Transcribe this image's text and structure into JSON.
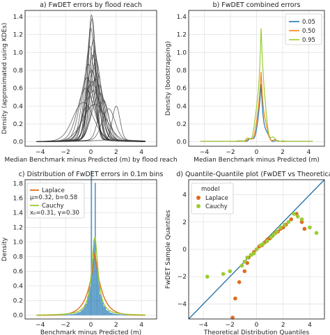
{
  "chart_data": [
    {
      "panel": "a",
      "type": "line",
      "title": "a) FwDET errors by flood reach",
      "xlabel": "Median Benchmark minus Predicted (m) by flood reach",
      "ylabel": "Density (approximated using KDEs)",
      "xlim": [
        -5.2,
        5.2
      ],
      "ylim": [
        -0.05,
        1.47
      ],
      "xticks": [
        -4,
        -2,
        0,
        2,
        4
      ],
      "yticks": [
        0.0,
        0.2,
        0.4,
        0.6,
        0.8,
        1.0,
        1.2,
        1.4
      ],
      "grid": true,
      "series_note": "many overlapping KDE curves (one per flood reach), dark grey",
      "series": [
        {
          "mu": 0.05,
          "s": 0.28,
          "peak": 1.4
        },
        {
          "mu": 0.1,
          "s": 0.3,
          "peak": 1.36
        },
        {
          "mu": 0.0,
          "s": 0.33,
          "peak": 1.25
        },
        {
          "mu": 0.2,
          "s": 0.35,
          "peak": 1.12
        },
        {
          "mu": -0.1,
          "s": 0.38,
          "peak": 1.05
        },
        {
          "mu": 0.3,
          "s": 0.36,
          "peak": 1.0
        },
        {
          "mu": 0.15,
          "s": 0.4,
          "peak": 0.95
        },
        {
          "mu": 0.4,
          "s": 0.42,
          "peak": 0.9
        },
        {
          "mu": -0.2,
          "s": 0.45,
          "peak": 0.85
        },
        {
          "mu": 0.25,
          "s": 0.48,
          "peak": 0.8
        },
        {
          "mu": 0.05,
          "s": 0.5,
          "peak": 0.78
        },
        {
          "mu": 0.5,
          "s": 0.45,
          "peak": 0.75
        },
        {
          "mu": -0.3,
          "s": 0.55,
          "peak": 0.7
        },
        {
          "mu": 0.35,
          "s": 0.55,
          "peak": 0.68
        },
        {
          "mu": 0.1,
          "s": 0.6,
          "peak": 0.65
        },
        {
          "mu": 0.6,
          "s": 0.5,
          "peak": 0.62
        },
        {
          "mu": -0.4,
          "s": 0.65,
          "peak": 0.58
        },
        {
          "mu": 0.2,
          "s": 0.7,
          "peak": 0.55
        },
        {
          "mu": 0.7,
          "s": 0.6,
          "peak": 0.52
        },
        {
          "mu": 1.0,
          "s": 0.4,
          "peak": 0.45
        },
        {
          "mu": 2.0,
          "s": 0.3,
          "peak": 0.38
        },
        {
          "mu": 1.4,
          "s": 0.5,
          "peak": 0.35
        },
        {
          "mu": -0.6,
          "s": 0.8,
          "peak": 0.42
        },
        {
          "mu": 0.3,
          "s": 0.9,
          "peak": 0.4
        }
      ]
    },
    {
      "panel": "b",
      "type": "line",
      "title": "b) FwDET combined errors",
      "xlabel": "Median Benchmark minus Predicted (m)",
      "ylabel": "Density (bootstrapping)",
      "xlim": [
        -5.2,
        5.2
      ],
      "ylim": [
        -0.05,
        1.47
      ],
      "xticks": [
        -4,
        -2,
        0,
        2,
        4
      ],
      "yticks": [
        0.0,
        0.2,
        0.4,
        0.6,
        0.8,
        1.0,
        1.2,
        1.4
      ],
      "grid": true,
      "legend_position": "top-right",
      "series": [
        {
          "name": "0.05",
          "color": "#1f77b4",
          "peak": 0.65,
          "mu": 0.35
        },
        {
          "name": "0.50",
          "color": "#ff7f0e",
          "peak": 0.85,
          "mu": 0.35
        },
        {
          "name": "0.95",
          "color": "#9acd32",
          "peak": 1.4,
          "mu": 0.35
        }
      ]
    },
    {
      "panel": "c",
      "type": "bar",
      "title": "c) Distribution of FwDET errors in 0.1m bins",
      "xlabel": "Benchmark minus Predicted (m)",
      "ylabel": "Density",
      "xlim": [
        -5.2,
        5.2
      ],
      "ylim": [
        -0.05,
        1.85
      ],
      "xticks": [
        -4,
        -2,
        0,
        2,
        4
      ],
      "yticks": [
        0.0,
        0.2,
        0.4,
        0.6,
        0.8,
        1.0,
        1.2,
        1.4,
        1.6,
        1.8
      ],
      "grid": true,
      "histogram_color": "#1f77b4",
      "legend_position": "top-left",
      "series": [
        {
          "name": "Laplace",
          "params": "μ=0.32, b=0.58",
          "color": "#e06c1f",
          "mu": 0.32,
          "b": 0.58
        },
        {
          "name": "Cauchy",
          "params": "x₀=0.31, γ=0.30",
          "color": "#9acd32",
          "x0": 0.31,
          "gamma": 0.3
        }
      ]
    },
    {
      "panel": "d",
      "type": "scatter",
      "title": "d) Quantile-Quantile plot (FwDET vs Theoretical)",
      "xlabel": "Theoretical Distribution Quantiles",
      "ylabel": "FwDET Sample Quantiles",
      "xlim": [
        -5.1,
        5.1
      ],
      "ylim": [
        -5.1,
        5.1
      ],
      "xticks": [
        -4,
        -2,
        0,
        2,
        4
      ],
      "yticks": [
        -4,
        -2,
        0,
        2,
        4
      ],
      "grid": true,
      "legend_title": "model",
      "legend_position": "top-left",
      "reference_line_color": "#1f6fa6",
      "series": [
        {
          "name": "Laplace",
          "color": "#e06c1f",
          "points": [
            [
              -1.8,
              -5.0
            ],
            [
              -1.6,
              -3.6
            ],
            [
              -1.3,
              -2.4
            ],
            [
              -0.9,
              -1.6
            ],
            [
              -0.7,
              -1.0
            ],
            [
              -0.6,
              -0.6
            ],
            [
              -0.4,
              -0.4
            ],
            [
              -0.2,
              -0.2
            ],
            [
              0.0,
              0.0
            ],
            [
              0.2,
              0.2
            ],
            [
              0.4,
              0.3
            ],
            [
              0.6,
              0.5
            ],
            [
              0.8,
              0.7
            ],
            [
              1.0,
              0.8
            ],
            [
              1.2,
              1.0
            ],
            [
              1.4,
              1.2
            ],
            [
              1.6,
              1.3
            ],
            [
              1.8,
              1.5
            ],
            [
              2.0,
              1.6
            ],
            [
              2.2,
              1.8
            ],
            [
              2.6,
              2.2
            ],
            [
              3.0,
              2.6
            ],
            [
              3.4,
              2.0
            ],
            [
              3.6,
              1.5
            ]
          ]
        },
        {
          "name": "Cauchy",
          "color": "#9acd32",
          "points": [
            [
              -3.7,
              -2.0
            ],
            [
              -2.5,
              -1.8
            ],
            [
              -2.0,
              -1.6
            ],
            [
              -1.1,
              -1.2
            ],
            [
              -0.9,
              -0.9
            ],
            [
              -0.7,
              -0.6
            ],
            [
              -0.4,
              -0.4
            ],
            [
              -0.2,
              -0.3
            ],
            [
              0.0,
              0.0
            ],
            [
              0.3,
              0.3
            ],
            [
              0.5,
              0.4
            ],
            [
              0.8,
              0.6
            ],
            [
              1.1,
              0.9
            ],
            [
              1.3,
              1.1
            ],
            [
              1.5,
              1.3
            ],
            [
              1.8,
              1.6
            ],
            [
              2.1,
              1.8
            ],
            [
              2.4,
              2.0
            ],
            [
              2.8,
              2.6
            ],
            [
              3.1,
              2.4
            ],
            [
              3.4,
              2.2
            ],
            [
              4.0,
              1.6
            ],
            [
              4.5,
              1.2
            ]
          ]
        }
      ]
    }
  ]
}
